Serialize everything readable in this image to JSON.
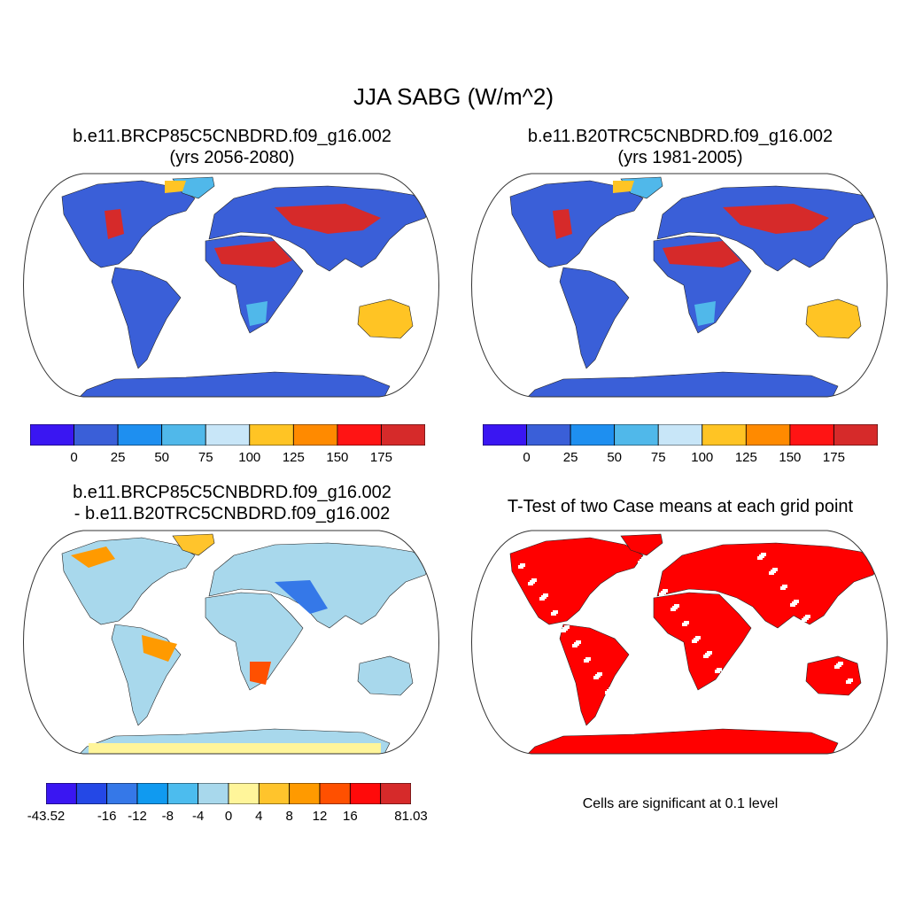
{
  "title": "JJA SABG (W/m^2)",
  "panels": [
    {
      "line1": "b.e11.BRCP85C5CNBDRD.f09_g16.002",
      "line2": "(yrs 2056-2080)",
      "colorbar": {
        "colors": [
          "#3a16f2",
          "#3a5fd8",
          "#1e8ff0",
          "#50b8ea",
          "#c8e6f8",
          "#ffc424",
          "#ff8a00",
          "#ff1414",
          "#d62a2a"
        ],
        "labels": [
          "0",
          "25",
          "50",
          "75",
          "100",
          "125",
          "150",
          "175"
        ]
      }
    },
    {
      "line1": "b.e11.B20TRC5CNBDRD.f09_g16.002",
      "line2": "(yrs 1981-2005)",
      "colorbar": {
        "colors": [
          "#3a16f2",
          "#3a5fd8",
          "#1e8ff0",
          "#50b8ea",
          "#c8e6f8",
          "#ffc424",
          "#ff8a00",
          "#ff1414",
          "#d62a2a"
        ],
        "labels": [
          "0",
          "25",
          "50",
          "75",
          "100",
          "125",
          "150",
          "175"
        ]
      }
    },
    {
      "line1": "b.e11.BRCP85C5CNBDRD.f09_g16.002",
      "line2": "- b.e11.B20TRC5CNBDRD.f09_g16.002",
      "colorbar": {
        "colors": [
          "#3a16f2",
          "#2448e6",
          "#3578e8",
          "#109af0",
          "#4cbcee",
          "#a8d8ec",
          "#fff59a",
          "#ffc42c",
          "#ff9a00",
          "#ff5000",
          "#ff0a0a",
          "#d62a2a"
        ],
        "labels": [
          "-43.52",
          "-16",
          "-12",
          "-8",
          "-4",
          "0",
          "4",
          "8",
          "12",
          "16",
          "81.03"
        ]
      }
    },
    {
      "line1": "T-Test of two Case means at each grid point",
      "note": "Cells are significant at 0.1 level",
      "fill_color": "#ff0000"
    }
  ]
}
